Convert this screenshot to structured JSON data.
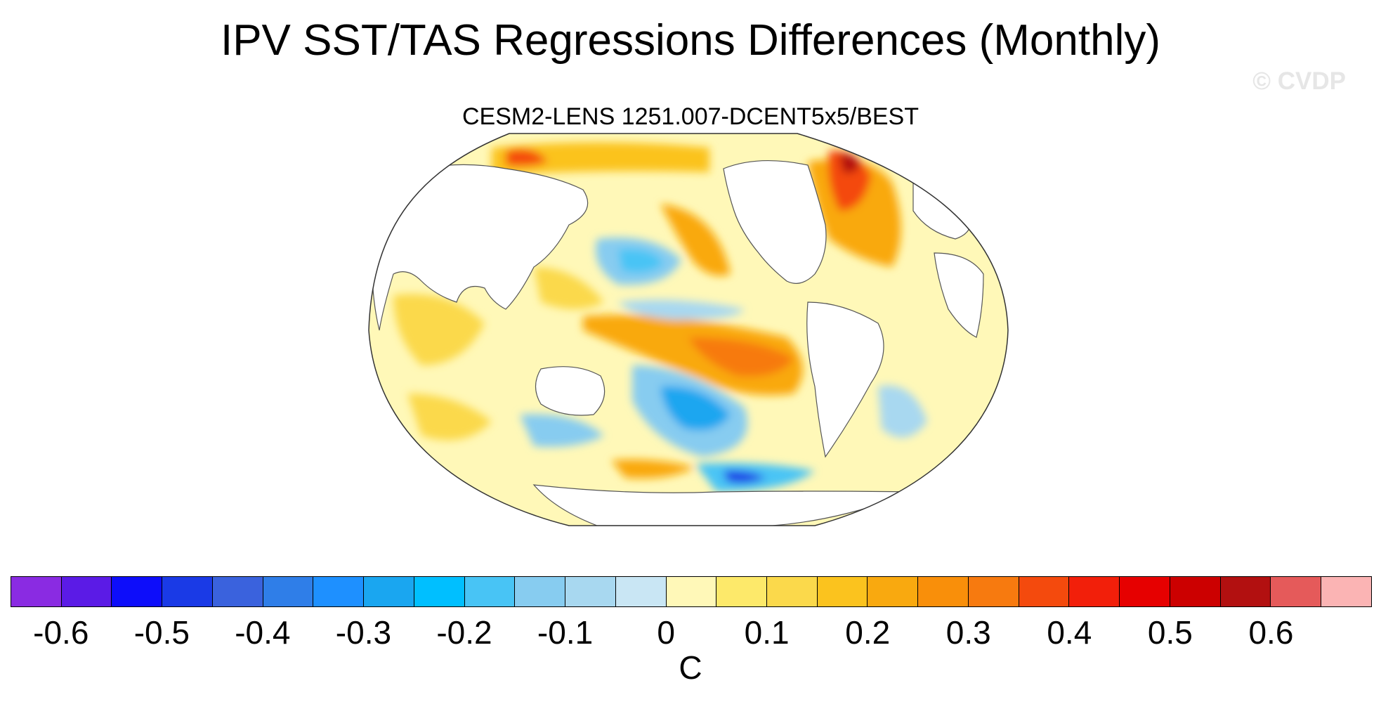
{
  "title": "IPV SST/TAS Regressions Differences (Monthly)",
  "watermark": "© CVDP",
  "subtitle": "CESM2-LENS 1251.007-DCENT5x5/BEST",
  "colorbar": {
    "units": "C",
    "levels": [
      "-0.6",
      "-0.5",
      "-0.4",
      "-0.3",
      "-0.2",
      "-0.1",
      "0",
      "0.1",
      "0.2",
      "0.3",
      "0.4",
      "0.5",
      "0.6"
    ],
    "colors": [
      "#8a2be2",
      "#5b1be6",
      "#0d0dfa",
      "#1a3ae6",
      "#3a62dd",
      "#2f7ee8",
      "#1e90ff",
      "#1aa6f0",
      "#00bfff",
      "#48c4f5",
      "#87ccf0",
      "#a8d8f0",
      "#c9e6f4",
      "#fff8b8",
      "#fde96a",
      "#fbd94b",
      "#fbc31e",
      "#f9a90f",
      "#f98f0a",
      "#f77a0f",
      "#f44a0d",
      "#f21f0a",
      "#e60000",
      "#cc0000",
      "#b21010",
      "#e55a5a",
      "#fbb4b4"
    ]
  },
  "map": {
    "projection": "Robinson",
    "field": "regression difference",
    "highlights": [
      {
        "region": "Arctic / North Atlantic",
        "sign": "positive",
        "peak": "0.6"
      },
      {
        "region": "Tropical East Pacific",
        "sign": "positive",
        "peak": "0.3"
      },
      {
        "region": "South Pacific",
        "sign": "negative",
        "peak": "-0.3"
      },
      {
        "region": "Southern Ocean (Ross/Amundsen)",
        "sign": "negative",
        "peak": "-0.5"
      },
      {
        "region": "North Pacific",
        "sign": "negative",
        "peak": "-0.3"
      }
    ]
  }
}
